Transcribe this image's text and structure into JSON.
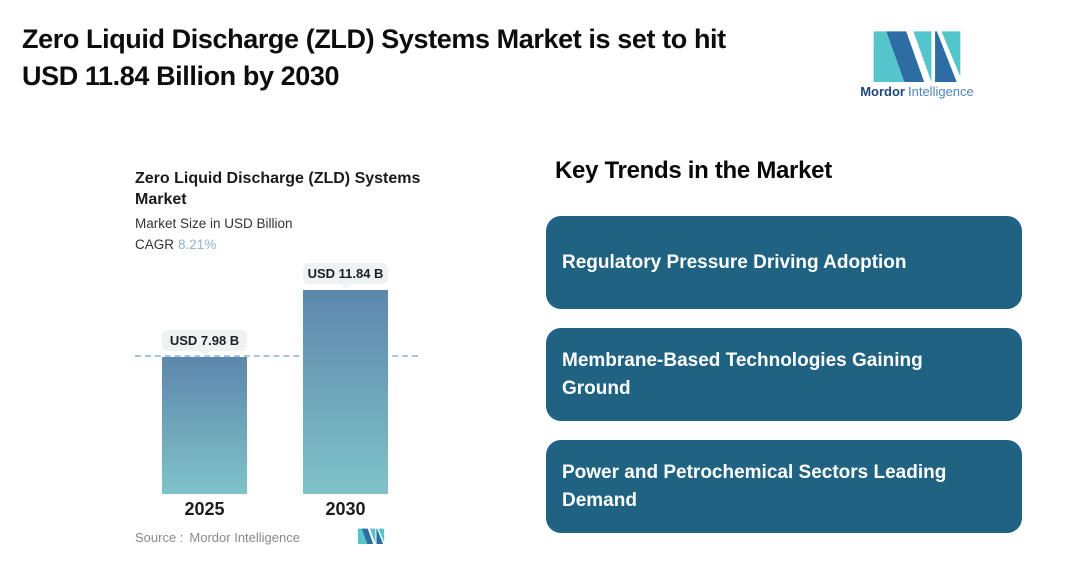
{
  "header": {
    "title_line1": "Zero Liquid Discharge (ZLD) Systems Market is set to hit",
    "title_line2": "USD 11.84 Billion by 2030"
  },
  "brand": {
    "name_bold": "Mordor",
    "name_light": "Intelligence"
  },
  "chart": {
    "title_line1": "Zero Liquid Discharge (ZLD) Systems",
    "title_line2": "Market",
    "subtitle": "Market Size in USD Billion",
    "cagr_label": "CAGR",
    "cagr_value": "8.21%",
    "source_label": "Source :",
    "source_value": "Mordor Intelligence"
  },
  "chart_data": {
    "type": "bar",
    "title": "Zero Liquid Discharge (ZLD) Systems Market",
    "subtitle": "Market Size in USD Billion",
    "cagr": "8.21%",
    "categories": [
      "2025",
      "2030"
    ],
    "values": [
      7.98,
      11.84
    ],
    "data_labels": [
      "USD 7.98 B",
      "USD 11.84 B"
    ],
    "unit": "USD Billion",
    "ylim": [
      0,
      11.84
    ],
    "grid": false,
    "legend": "none",
    "reference_line": {
      "value": 7.98,
      "style": "dashed"
    },
    "source": "Mordor Intelligence"
  },
  "trends": {
    "heading": "Key Trends in the Market",
    "cards": [
      {
        "label": "Regulatory Pressure Driving Adoption"
      },
      {
        "label": "Membrane-Based Technologies Gaining Ground"
      },
      {
        "label": "Power and Petrochemical Sectors Leading Demand"
      }
    ]
  },
  "colors": {
    "card_teal": "#1F6282",
    "bar_gradient_top": "#5D87AC",
    "bar_gradient_bottom": "#7FC3C9",
    "dashed_line": "#A7C6DB",
    "cagr_value": "#8EB6CE",
    "callout_bg": "#EDF2F2",
    "logo_teal": "#54C5CB",
    "logo_blue": "#2E6DA3",
    "logo_text_dark": "#1D4679",
    "logo_text_light": "#4E86B9"
  }
}
